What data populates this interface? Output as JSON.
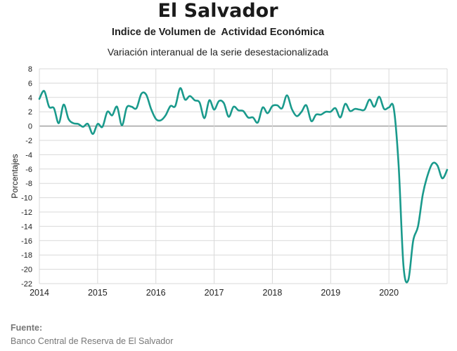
{
  "chart_data": {
    "type": "line",
    "title": "El Salvador",
    "subtitle": "Indice de Volumen de  Actividad Económica",
    "note": "Variación interanual de la serie desestacionalizada",
    "ylabel": "Porcentajes",
    "xlabel": "",
    "ylim": [
      -22,
      8
    ],
    "yticks": [
      8,
      6,
      4,
      2,
      0,
      -2,
      -4,
      -6,
      -8,
      -10,
      -12,
      -14,
      -16,
      -18,
      -20,
      -22
    ],
    "xlim": [
      2014,
      2021
    ],
    "xticks": [
      "2014",
      "2015",
      "2016",
      "2017",
      "2018",
      "2019",
      "2020"
    ],
    "grid": true,
    "line_color": "#1a9a8c",
    "series": [
      {
        "name": "",
        "points": [
          [
            2014.0,
            3.8
          ],
          [
            2014.083,
            4.9
          ],
          [
            2014.167,
            2.7
          ],
          [
            2014.25,
            2.5
          ],
          [
            2014.333,
            0.4
          ],
          [
            2014.417,
            3.0
          ],
          [
            2014.5,
            1.0
          ],
          [
            2014.583,
            0.4
          ],
          [
            2014.667,
            0.3
          ],
          [
            2014.75,
            -0.1
          ],
          [
            2014.833,
            0.3
          ],
          [
            2014.917,
            -1.1
          ],
          [
            2015.0,
            0.3
          ],
          [
            2015.083,
            -0.1
          ],
          [
            2015.167,
            2.0
          ],
          [
            2015.25,
            1.5
          ],
          [
            2015.333,
            2.7
          ],
          [
            2015.417,
            0.1
          ],
          [
            2015.5,
            2.6
          ],
          [
            2015.583,
            2.7
          ],
          [
            2015.667,
            2.5
          ],
          [
            2015.75,
            4.5
          ],
          [
            2015.833,
            4.4
          ],
          [
            2015.917,
            2.4
          ],
          [
            2016.0,
            1.0
          ],
          [
            2016.083,
            0.8
          ],
          [
            2016.167,
            1.5
          ],
          [
            2016.25,
            2.8
          ],
          [
            2016.333,
            2.8
          ],
          [
            2016.417,
            5.3
          ],
          [
            2016.5,
            3.7
          ],
          [
            2016.583,
            4.2
          ],
          [
            2016.667,
            3.6
          ],
          [
            2016.75,
            3.3
          ],
          [
            2016.833,
            1.1
          ],
          [
            2016.917,
            3.6
          ],
          [
            2017.0,
            2.3
          ],
          [
            2017.083,
            3.5
          ],
          [
            2017.167,
            3.2
          ],
          [
            2017.25,
            1.3
          ],
          [
            2017.333,
            2.7
          ],
          [
            2017.417,
            2.2
          ],
          [
            2017.5,
            2.1
          ],
          [
            2017.583,
            1.2
          ],
          [
            2017.667,
            1.2
          ],
          [
            2017.75,
            0.5
          ],
          [
            2017.833,
            2.6
          ],
          [
            2017.917,
            1.8
          ],
          [
            2018.0,
            2.8
          ],
          [
            2018.083,
            2.9
          ],
          [
            2018.167,
            2.5
          ],
          [
            2018.25,
            4.3
          ],
          [
            2018.333,
            2.4
          ],
          [
            2018.417,
            1.4
          ],
          [
            2018.5,
            2.0
          ],
          [
            2018.583,
            2.9
          ],
          [
            2018.667,
            0.7
          ],
          [
            2018.75,
            1.6
          ],
          [
            2018.833,
            1.6
          ],
          [
            2018.917,
            2.0
          ],
          [
            2019.0,
            2.0
          ],
          [
            2019.083,
            2.5
          ],
          [
            2019.167,
            1.2
          ],
          [
            2019.25,
            3.1
          ],
          [
            2019.333,
            2.1
          ],
          [
            2019.417,
            2.4
          ],
          [
            2019.5,
            2.3
          ],
          [
            2019.583,
            2.3
          ],
          [
            2019.667,
            3.7
          ],
          [
            2019.75,
            2.7
          ],
          [
            2019.833,
            4.1
          ],
          [
            2019.917,
            2.4
          ],
          [
            2020.0,
            2.6
          ],
          [
            2020.083,
            2.5
          ],
          [
            2020.167,
            -5.5
          ],
          [
            2020.25,
            -19.5
          ],
          [
            2020.333,
            -21.5
          ],
          [
            2020.417,
            -16.0
          ],
          [
            2020.5,
            -14.0
          ],
          [
            2020.583,
            -9.5
          ],
          [
            2020.667,
            -6.8
          ],
          [
            2020.75,
            -5.2
          ],
          [
            2020.833,
            -5.5
          ],
          [
            2020.917,
            -7.3
          ],
          [
            2021.0,
            -6.1
          ]
        ]
      }
    ]
  },
  "source": {
    "label": "Fuente:",
    "text": "Banco Central de Reserva de El Salvador"
  }
}
